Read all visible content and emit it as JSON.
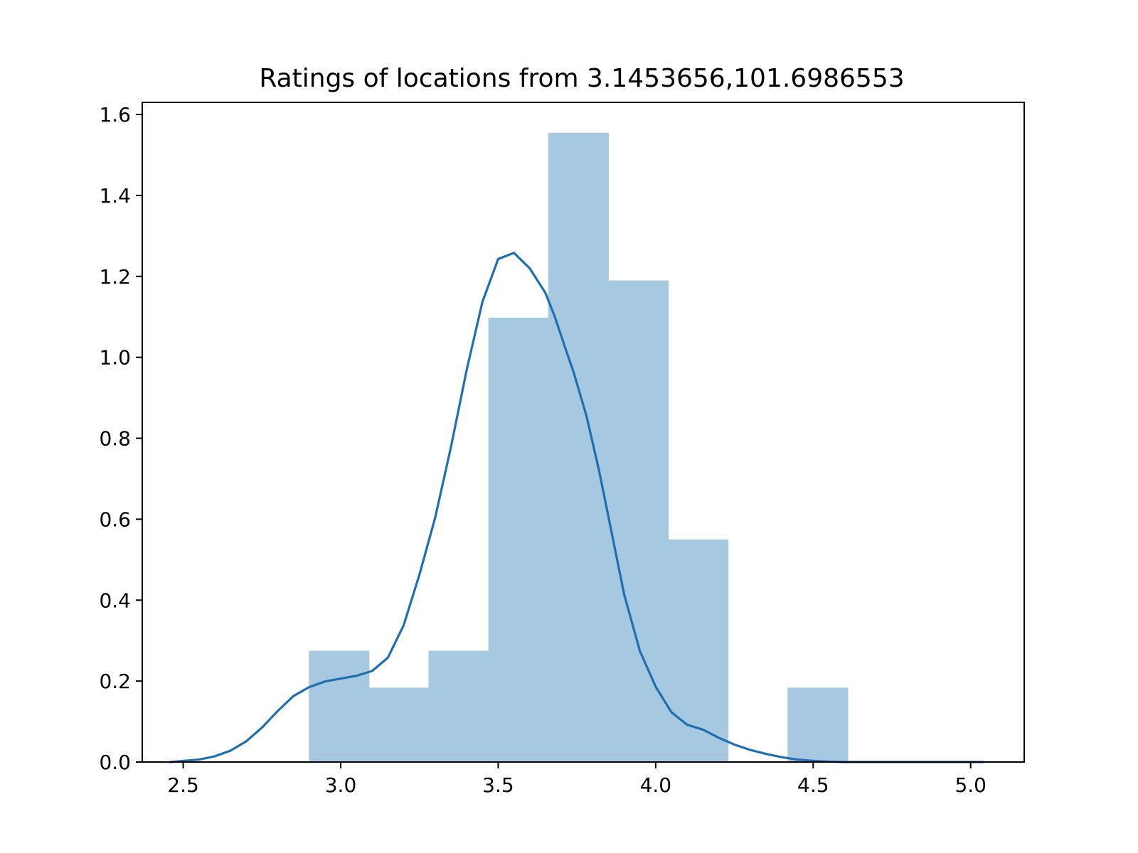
{
  "chart_data": {
    "type": "bar",
    "subtype": "histogram-with-kde",
    "title": "Ratings of locations from 3.1453656,101.6986553",
    "xlabel": "",
    "ylabel": "",
    "xlim": [
      2.37,
      5.17
    ],
    "ylim": [
      0.0,
      1.63
    ],
    "x_ticks": [
      2.5,
      3.0,
      3.5,
      4.0,
      4.5,
      5.0
    ],
    "x_tick_labels": [
      "2.5",
      "3.0",
      "3.5",
      "4.0",
      "4.5",
      "5.0"
    ],
    "y_ticks": [
      0.0,
      0.2,
      0.4,
      0.6,
      0.8,
      1.0,
      1.2,
      1.4,
      1.6
    ],
    "y_tick_labels": [
      "0.0",
      "0.2",
      "0.4",
      "0.6",
      "0.8",
      "1.0",
      "1.2",
      "1.4",
      "1.6"
    ],
    "grid": false,
    "bins": [
      {
        "x0": 2.9,
        "x1": 3.09,
        "value": 0.274
      },
      {
        "x0": 3.09,
        "x1": 3.28,
        "value": 0.183
      },
      {
        "x0": 3.28,
        "x1": 3.47,
        "value": 0.274
      },
      {
        "x0": 3.47,
        "x1": 3.66,
        "value": 1.097
      },
      {
        "x0": 3.66,
        "x1": 3.85,
        "value": 1.554
      },
      {
        "x0": 3.85,
        "x1": 4.04,
        "value": 1.189
      },
      {
        "x0": 4.04,
        "x1": 4.23,
        "value": 0.549
      },
      {
        "x0": 4.23,
        "x1": 4.42,
        "value": 0.0
      },
      {
        "x0": 4.42,
        "x1": 4.61,
        "value": 0.183
      }
    ],
    "kde": {
      "x": [
        2.46,
        2.55,
        2.6,
        2.65,
        2.7,
        2.75,
        2.8,
        2.85,
        2.9,
        2.95,
        3.0,
        3.05,
        3.1,
        3.15,
        3.2,
        3.25,
        3.3,
        3.35,
        3.4,
        3.45,
        3.5,
        3.55,
        3.6,
        3.65,
        3.68,
        3.71,
        3.74,
        3.78,
        3.82,
        3.86,
        3.9,
        3.95,
        4.0,
        4.05,
        4.1,
        4.15,
        4.2,
        4.25,
        4.3,
        4.35,
        4.4,
        4.45,
        4.5,
        4.55,
        4.6,
        4.65,
        4.7,
        4.75,
        4.8,
        4.85,
        4.9,
        4.95,
        5.04
      ],
      "y": [
        0.0,
        0.006,
        0.014,
        0.028,
        0.051,
        0.085,
        0.126,
        0.163,
        0.185,
        0.199,
        0.206,
        0.213,
        0.225,
        0.258,
        0.338,
        0.463,
        0.604,
        0.778,
        0.969,
        1.137,
        1.243,
        1.258,
        1.22,
        1.159,
        1.1,
        1.03,
        0.962,
        0.856,
        0.721,
        0.568,
        0.414,
        0.274,
        0.186,
        0.123,
        0.092,
        0.08,
        0.06,
        0.043,
        0.03,
        0.02,
        0.012,
        0.006,
        0.003,
        0.001,
        0.0,
        0.0,
        0.0,
        0.0,
        0.0,
        0.0,
        0.0,
        0.0,
        0.0
      ]
    },
    "colors": {
      "bar_fill": "#a6c8e0",
      "bar_stroke": "#a6c8e0",
      "kde_line": "#1f6fb0",
      "axis": "#000000"
    }
  }
}
